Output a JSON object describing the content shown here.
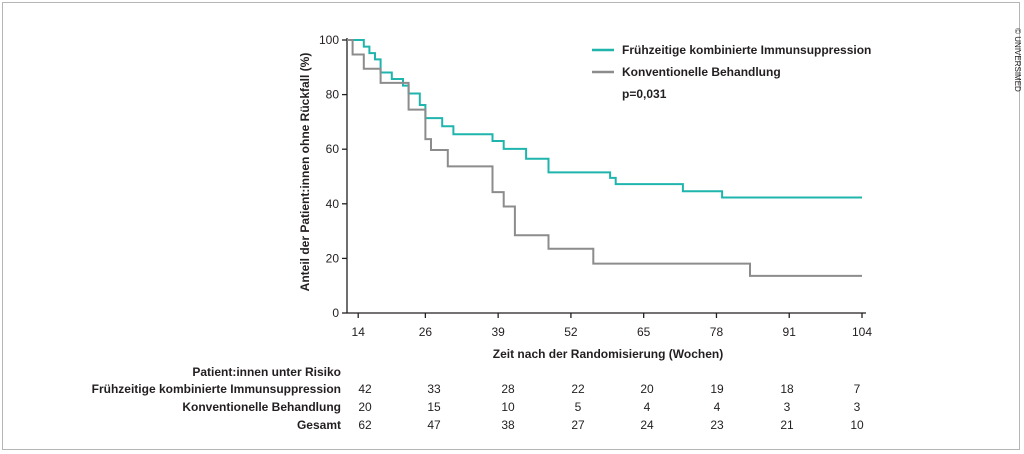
{
  "chart_data": {
    "type": "line",
    "subtype": "kaplan-meier-step",
    "ylabel": "Anteil der Patient:innen ohne Rückfall (%)",
    "xlabel": "Zeit nach der Randomisierung (Wochen)",
    "xlim": [
      12,
      104
    ],
    "ylim": [
      0,
      100
    ],
    "x_ticks": [
      "14",
      "26",
      "39",
      "52",
      "65",
      "78",
      "91",
      "104"
    ],
    "y_ticks": [
      "0",
      "20",
      "40",
      "60",
      "80",
      "100"
    ],
    "legend_position": "top-right",
    "p_value": "p=0,031",
    "series": [
      {
        "name": "Frühzeitige kombinierte Immunsuppression",
        "color": "#1fb5ad",
        "points": [
          [
            12,
            100
          ],
          [
            15,
            100
          ],
          [
            15,
            97.6
          ],
          [
            16,
            97.6
          ],
          [
            16,
            95.2
          ],
          [
            17,
            95.2
          ],
          [
            17,
            92.9
          ],
          [
            18,
            92.9
          ],
          [
            18,
            88.1
          ],
          [
            20,
            88.1
          ],
          [
            20,
            85.7
          ],
          [
            22,
            85.7
          ],
          [
            22,
            83.3
          ],
          [
            23,
            83.3
          ],
          [
            23,
            80.4
          ],
          [
            25,
            80.4
          ],
          [
            25,
            76.2
          ],
          [
            26,
            76.2
          ],
          [
            26,
            71.4
          ],
          [
            29,
            71.4
          ],
          [
            29,
            68.4
          ],
          [
            31,
            68.4
          ],
          [
            31,
            65.5
          ],
          [
            38,
            65.5
          ],
          [
            38,
            63
          ],
          [
            40,
            63
          ],
          [
            40,
            60.1
          ],
          [
            44,
            60.1
          ],
          [
            44,
            56.5
          ],
          [
            48,
            56.5
          ],
          [
            48,
            51.5
          ],
          [
            59,
            51.5
          ],
          [
            59,
            49.5
          ],
          [
            60,
            49.5
          ],
          [
            60,
            47.2
          ],
          [
            72,
            47.2
          ],
          [
            72,
            44.6
          ],
          [
            79,
            44.6
          ],
          [
            79,
            42.3
          ],
          [
            104,
            42.3
          ]
        ]
      },
      {
        "name": "Konventionelle Behandlung",
        "color": "#8c8c8c",
        "points": [
          [
            12,
            100
          ],
          [
            13,
            100
          ],
          [
            13,
            94.7
          ],
          [
            15,
            94.7
          ],
          [
            15,
            89.5
          ],
          [
            18,
            89.5
          ],
          [
            18,
            84.3
          ],
          [
            23,
            84.3
          ],
          [
            23,
            74.5
          ],
          [
            26,
            74.5
          ],
          [
            26,
            63.7
          ],
          [
            27,
            63.7
          ],
          [
            27,
            59.7
          ],
          [
            30,
            59.7
          ],
          [
            30,
            53.7
          ],
          [
            38,
            53.7
          ],
          [
            38,
            44.3
          ],
          [
            40,
            44.3
          ],
          [
            40,
            39
          ],
          [
            42,
            39
          ],
          [
            42,
            28.5
          ],
          [
            48,
            28.5
          ],
          [
            48,
            23.5
          ],
          [
            56,
            23.5
          ],
          [
            56,
            18.1
          ],
          [
            84,
            18.1
          ],
          [
            84,
            13.6
          ],
          [
            104,
            13.6
          ]
        ]
      }
    ]
  },
  "risk_table": {
    "title": "Patient:innen unter Risiko",
    "rows": [
      {
        "label": "Frühzeitige kombinierte Immunsuppression",
        "values": [
          "42",
          "33",
          "28",
          "22",
          "20",
          "19",
          "18",
          "7"
        ]
      },
      {
        "label": "Konventionelle Behandlung",
        "values": [
          "20",
          "15",
          "10",
          "5",
          "4",
          "4",
          "3",
          "3"
        ]
      },
      {
        "label": "Gesamt",
        "values": [
          "62",
          "47",
          "38",
          "27",
          "24",
          "23",
          "21",
          "10"
        ]
      }
    ]
  },
  "copyright": "© UNIVERSIMED"
}
